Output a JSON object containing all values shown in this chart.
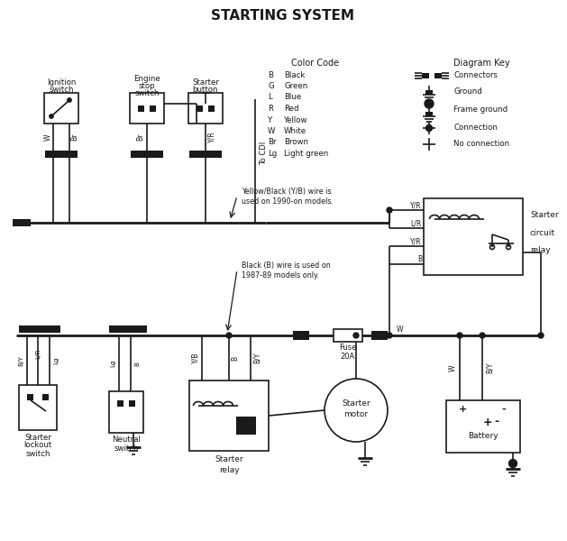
{
  "title": "STARTING SYSTEM",
  "bg_color": "#ffffff",
  "line_color": "#1a1a1a",
  "title_fontsize": 11,
  "label_fontsize": 7,
  "small_fontsize": 6,
  "color_code_title": "Color Code",
  "color_codes": [
    [
      "B",
      "Black"
    ],
    [
      "G",
      "Green"
    ],
    [
      "L",
      "Blue"
    ],
    [
      "R",
      "Red"
    ],
    [
      "Y",
      "Yellow"
    ],
    [
      "W",
      "White"
    ],
    [
      "Br",
      "Brown"
    ],
    [
      "Lg",
      "Light green"
    ]
  ],
  "diagram_key_title": "Diagram Key",
  "diagram_key_items": [
    "Connectors",
    "Ground",
    "Frame ground",
    "Connection",
    "No connection"
  ]
}
